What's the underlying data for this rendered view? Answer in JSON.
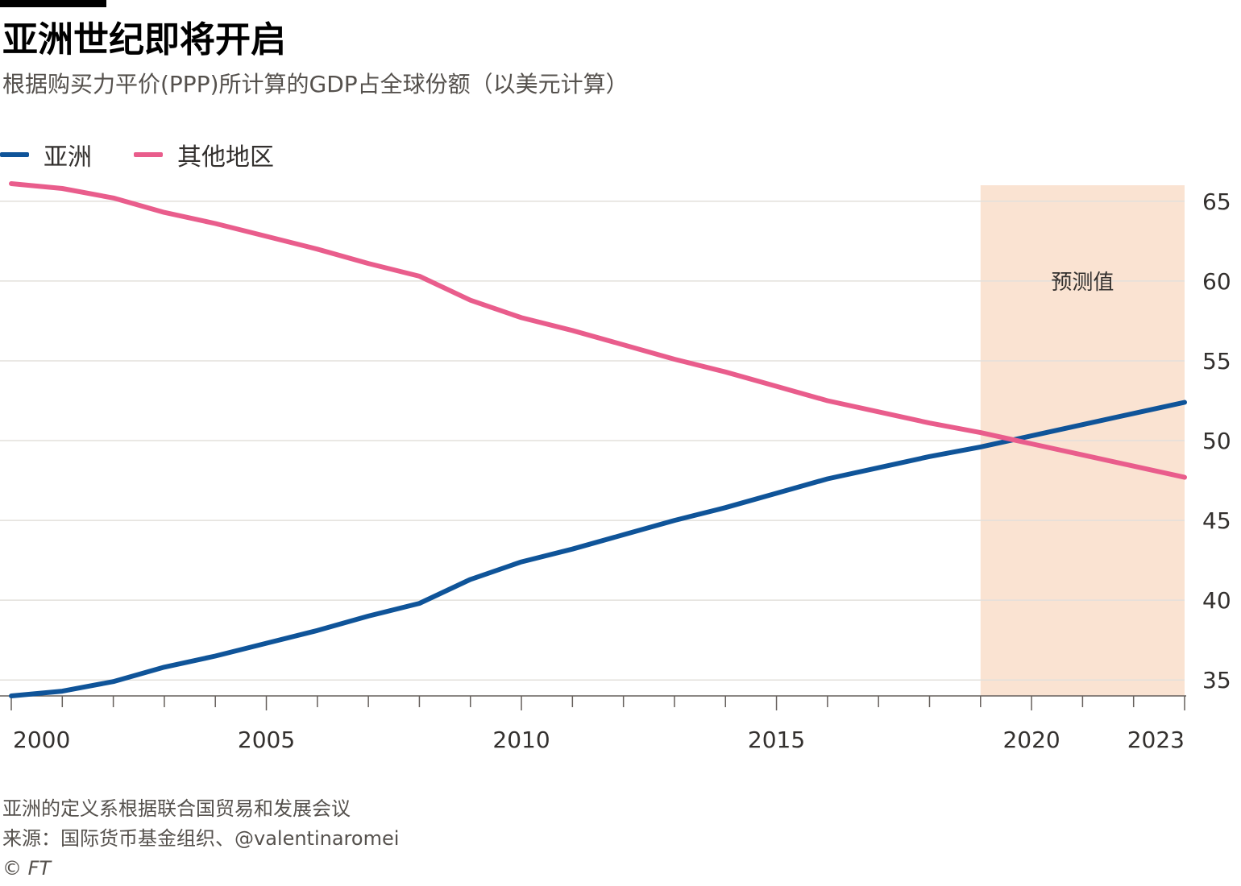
{
  "header": {
    "title": "亚洲世纪即将开启",
    "subtitle": "根据购买力平价(PPP)所计算的GDP占全球份额（以美元计算）"
  },
  "footer": {
    "note": "亚洲的定义系根据联合国贸易和发展会议",
    "source": "来源：国际货币基金组织、@valentinaromei",
    "credit": "© FT"
  },
  "colors": {
    "asia": "#0f5499",
    "rest": "#e95d8c",
    "forecast_shade": "#fae3d2",
    "grid": "#e3e0db",
    "axis_text": "#33302e"
  },
  "chart_data": {
    "type": "line",
    "x": [
      2000,
      2001,
      2002,
      2003,
      2004,
      2005,
      2006,
      2007,
      2008,
      2009,
      2010,
      2011,
      2012,
      2013,
      2014,
      2015,
      2016,
      2017,
      2018,
      2019,
      2020,
      2021,
      2022,
      2023
    ],
    "series": [
      {
        "name": "亚洲",
        "color": "#0f5499",
        "values": [
          34.0,
          34.3,
          34.9,
          35.8,
          36.5,
          37.3,
          38.1,
          39.0,
          39.8,
          41.3,
          42.4,
          43.2,
          44.1,
          45.0,
          45.8,
          46.7,
          47.6,
          48.3,
          49.0,
          49.6,
          50.3,
          51.0,
          51.7,
          52.4
        ],
        "label": "亚洲"
      },
      {
        "name": "其他地区",
        "color": "#e95d8c",
        "values": [
          66.1,
          65.8,
          65.2,
          64.3,
          63.6,
          62.8,
          62.0,
          61.1,
          60.3,
          58.8,
          57.7,
          56.9,
          56.0,
          55.1,
          54.3,
          53.4,
          52.5,
          51.8,
          51.1,
          50.5,
          49.8,
          49.1,
          48.4,
          47.7
        ],
        "label": "其他地区"
      }
    ],
    "forecast_region": {
      "from": 2019,
      "to": 2023,
      "label": "预测值"
    },
    "x_tick_labels": [
      2000,
      2005,
      2010,
      2015,
      2020,
      2023
    ],
    "y_ticks": [
      35,
      40,
      45,
      50,
      55,
      60,
      65
    ],
    "xlim": [
      2000,
      2023
    ],
    "ylim": [
      34,
      66
    ],
    "y_axis_side": "right",
    "grid": true,
    "legend_position": "top-left"
  }
}
